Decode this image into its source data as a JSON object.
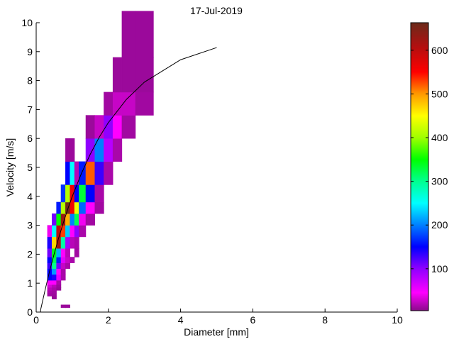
{
  "chart_data": {
    "type": "heatmap",
    "title": "17-Jul-2019",
    "xlabel": "Diameter [mm]",
    "ylabel": "Velocity [m/s]",
    "xlim": [
      0,
      10
    ],
    "ylim": [
      0,
      10
    ],
    "xticks": [
      0,
      2,
      4,
      6,
      8,
      10
    ],
    "yticks": [
      0,
      1,
      2,
      3,
      4,
      5,
      6,
      7,
      8,
      9,
      10
    ],
    "grid": false,
    "colorbar": {
      "position": "right",
      "range": [
        4,
        663
      ],
      "ticks": [
        100,
        200,
        300,
        400,
        500,
        600
      ],
      "colormap": [
        [
          4,
          "#8a0a8a"
        ],
        [
          45,
          "#ff00ff"
        ],
        [
          100,
          "#9000ff"
        ],
        [
          150,
          "#0000ff"
        ],
        [
          200,
          "#0080ff"
        ],
        [
          250,
          "#00ffff"
        ],
        [
          300,
          "#00ff90"
        ],
        [
          350,
          "#00ff00"
        ],
        [
          400,
          "#a0ff00"
        ],
        [
          450,
          "#ffff00"
        ],
        [
          500,
          "#ff9900"
        ],
        [
          550,
          "#ff0000"
        ],
        [
          610,
          "#b01010"
        ],
        [
          663,
          "#6b2a1a"
        ]
      ]
    },
    "cell_fields": [
      "diameter_min",
      "diameter_max",
      "velocity_min",
      "velocity_max",
      "count"
    ],
    "cells": [
      [
        0.687,
        0.812,
        0.15,
        0.25,
        10
      ],
      [
        0.812,
        0.937,
        0.15,
        0.25,
        10
      ],
      [
        0.437,
        0.562,
        0.45,
        0.55,
        8
      ],
      [
        0.312,
        0.437,
        0.55,
        0.65,
        12
      ],
      [
        0.437,
        0.562,
        0.55,
        0.65,
        10
      ],
      [
        0.312,
        0.437,
        0.65,
        0.75,
        15
      ],
      [
        0.437,
        0.562,
        0.65,
        0.75,
        12
      ],
      [
        0.312,
        0.437,
        0.75,
        0.85,
        20
      ],
      [
        0.437,
        0.562,
        0.75,
        0.85,
        15
      ],
      [
        0.562,
        0.687,
        0.75,
        0.85,
        8
      ],
      [
        0.312,
        0.437,
        0.85,
        0.95,
        30
      ],
      [
        0.437,
        0.562,
        0.85,
        0.95,
        20
      ],
      [
        0.562,
        0.687,
        0.85,
        0.95,
        10
      ],
      [
        0.312,
        0.437,
        0.95,
        1.1,
        45
      ],
      [
        0.437,
        0.562,
        0.95,
        1.1,
        45
      ],
      [
        0.562,
        0.687,
        0.95,
        1.1,
        15
      ],
      [
        0.312,
        0.437,
        1.1,
        1.3,
        150
      ],
      [
        0.437,
        0.562,
        1.1,
        1.3,
        140
      ],
      [
        0.562,
        0.687,
        1.1,
        1.3,
        60
      ],
      [
        0.687,
        0.812,
        1.1,
        1.3,
        15
      ],
      [
        0.312,
        0.437,
        1.3,
        1.5,
        150
      ],
      [
        0.437,
        0.562,
        1.3,
        1.5,
        210
      ],
      [
        0.562,
        0.687,
        1.3,
        1.5,
        45
      ],
      [
        0.687,
        0.812,
        1.3,
        1.5,
        15
      ],
      [
        0.312,
        0.437,
        1.5,
        1.7,
        130
      ],
      [
        0.437,
        0.562,
        1.5,
        1.7,
        300
      ],
      [
        0.562,
        0.687,
        1.5,
        1.7,
        110
      ],
      [
        0.687,
        0.812,
        1.5,
        1.7,
        25
      ],
      [
        0.812,
        0.937,
        1.5,
        1.7,
        15
      ],
      [
        0.312,
        0.437,
        1.7,
        1.9,
        150
      ],
      [
        0.437,
        0.562,
        1.7,
        1.9,
        320
      ],
      [
        0.562,
        0.687,
        1.7,
        1.9,
        160
      ],
      [
        0.687,
        0.812,
        1.7,
        1.9,
        60
      ],
      [
        0.812,
        0.937,
        1.7,
        1.9,
        25
      ],
      [
        0.937,
        1.062,
        1.7,
        1.9,
        15
      ],
      [
        0.312,
        0.437,
        1.9,
        2.2,
        110
      ],
      [
        0.437,
        0.562,
        1.9,
        2.2,
        340
      ],
      [
        0.562,
        0.687,
        1.9,
        2.2,
        220
      ],
      [
        0.687,
        0.812,
        1.9,
        2.2,
        45
      ],
      [
        0.812,
        0.937,
        1.9,
        2.2,
        20
      ],
      [
        1.062,
        1.187,
        1.9,
        2.2,
        12
      ],
      [
        0.312,
        0.437,
        2.2,
        2.6,
        140
      ],
      [
        0.437,
        0.562,
        2.2,
        2.6,
        470
      ],
      [
        0.562,
        0.687,
        2.2,
        2.6,
        620
      ],
      [
        0.687,
        0.812,
        2.2,
        2.6,
        290
      ],
      [
        0.812,
        0.937,
        2.2,
        2.6,
        90
      ],
      [
        0.937,
        1.062,
        2.2,
        2.6,
        20
      ],
      [
        1.062,
        1.187,
        2.2,
        2.6,
        15
      ],
      [
        0.312,
        0.437,
        2.6,
        3.0,
        40
      ],
      [
        0.437,
        0.562,
        2.6,
        3.0,
        250
      ],
      [
        0.562,
        0.687,
        2.6,
        3.0,
        600
      ],
      [
        0.687,
        0.812,
        2.6,
        3.0,
        530
      ],
      [
        0.812,
        0.937,
        2.6,
        3.0,
        230
      ],
      [
        0.937,
        1.062,
        2.6,
        3.0,
        45
      ],
      [
        1.062,
        1.187,
        2.6,
        3.0,
        100
      ],
      [
        1.187,
        1.375,
        2.6,
        3.0,
        15
      ],
      [
        0.437,
        0.562,
        3.0,
        3.4,
        110
      ],
      [
        0.562,
        0.687,
        3.0,
        3.4,
        350
      ],
      [
        0.687,
        0.812,
        3.0,
        3.4,
        630
      ],
      [
        0.812,
        0.937,
        3.0,
        3.4,
        490
      ],
      [
        0.937,
        1.062,
        3.0,
        3.4,
        200
      ],
      [
        1.062,
        1.187,
        3.0,
        3.4,
        320
      ],
      [
        1.187,
        1.375,
        3.0,
        3.4,
        40
      ],
      [
        1.375,
        1.625,
        3.0,
        3.4,
        12
      ],
      [
        0.562,
        0.687,
        3.4,
        3.8,
        160
      ],
      [
        0.687,
        0.812,
        3.4,
        3.8,
        410
      ],
      [
        0.812,
        0.937,
        3.4,
        3.8,
        660
      ],
      [
        0.937,
        1.062,
        3.4,
        3.8,
        560
      ],
      [
        1.062,
        1.187,
        3.4,
        3.8,
        440
      ],
      [
        1.187,
        1.375,
        3.4,
        3.8,
        190
      ],
      [
        1.375,
        1.625,
        3.4,
        3.8,
        45
      ],
      [
        1.625,
        1.875,
        3.4,
        3.8,
        12
      ],
      [
        0.687,
        0.812,
        3.8,
        4.4,
        170
      ],
      [
        0.812,
        0.937,
        3.8,
        4.4,
        410
      ],
      [
        0.937,
        1.062,
        3.8,
        4.4,
        560
      ],
      [
        1.062,
        1.187,
        3.8,
        4.4,
        150
      ],
      [
        1.187,
        1.375,
        3.8,
        4.4,
        330
      ],
      [
        1.375,
        1.625,
        3.8,
        4.4,
        150
      ],
      [
        1.625,
        1.875,
        3.8,
        4.4,
        15
      ],
      [
        0.812,
        0.937,
        4.4,
        5.2,
        150
      ],
      [
        0.937,
        1.062,
        4.4,
        5.2,
        250
      ],
      [
        1.062,
        1.187,
        4.4,
        5.2,
        20
      ],
      [
        1.187,
        1.375,
        4.4,
        5.2,
        160
      ],
      [
        1.375,
        1.625,
        4.4,
        5.2,
        520
      ],
      [
        1.625,
        1.875,
        4.4,
        5.2,
        130
      ],
      [
        1.875,
        2.125,
        4.4,
        5.2,
        15
      ],
      [
        0.812,
        0.937,
        5.2,
        6.0,
        10
      ],
      [
        0.937,
        1.062,
        5.2,
        6.0,
        10
      ],
      [
        1.375,
        1.625,
        5.2,
        6.0,
        100
      ],
      [
        1.625,
        1.875,
        5.2,
        6.0,
        200
      ],
      [
        1.875,
        2.125,
        5.2,
        6.0,
        80
      ],
      [
        2.125,
        2.375,
        5.2,
        6.0,
        15
      ],
      [
        1.375,
        1.625,
        6.0,
        6.8,
        10
      ],
      [
        1.625,
        1.875,
        6.0,
        6.8,
        25
      ],
      [
        1.875,
        2.125,
        6.0,
        6.8,
        100
      ],
      [
        2.125,
        2.375,
        6.0,
        6.8,
        45
      ],
      [
        2.375,
        2.75,
        6.0,
        6.8,
        12
      ],
      [
        1.875,
        2.125,
        6.8,
        7.6,
        12
      ],
      [
        2.125,
        2.375,
        6.8,
        7.6,
        25
      ],
      [
        2.375,
        2.75,
        6.8,
        7.6,
        25
      ],
      [
        2.75,
        3.25,
        6.8,
        7.6,
        12
      ],
      [
        2.125,
        2.375,
        7.6,
        8.8,
        10
      ],
      [
        2.375,
        2.75,
        7.6,
        8.8,
        10
      ],
      [
        2.75,
        3.25,
        7.6,
        8.8,
        10
      ],
      [
        2.375,
        2.75,
        8.8,
        10.4,
        10
      ],
      [
        2.75,
        3.25,
        8.8,
        10.4,
        10
      ]
    ],
    "fit_line": {
      "color": "#000000",
      "x": [
        0.125,
        0.25,
        0.375,
        0.5,
        0.625,
        0.75,
        0.875,
        1,
        1.25,
        1.5,
        1.75,
        2,
        2.5,
        3,
        4,
        5
      ],
      "y": [
        0.09,
        0.78,
        1.43,
        2.02,
        2.57,
        3.08,
        3.56,
        4.0,
        4.78,
        5.46,
        6.05,
        6.55,
        7.35,
        7.95,
        8.72,
        9.14
      ]
    }
  }
}
